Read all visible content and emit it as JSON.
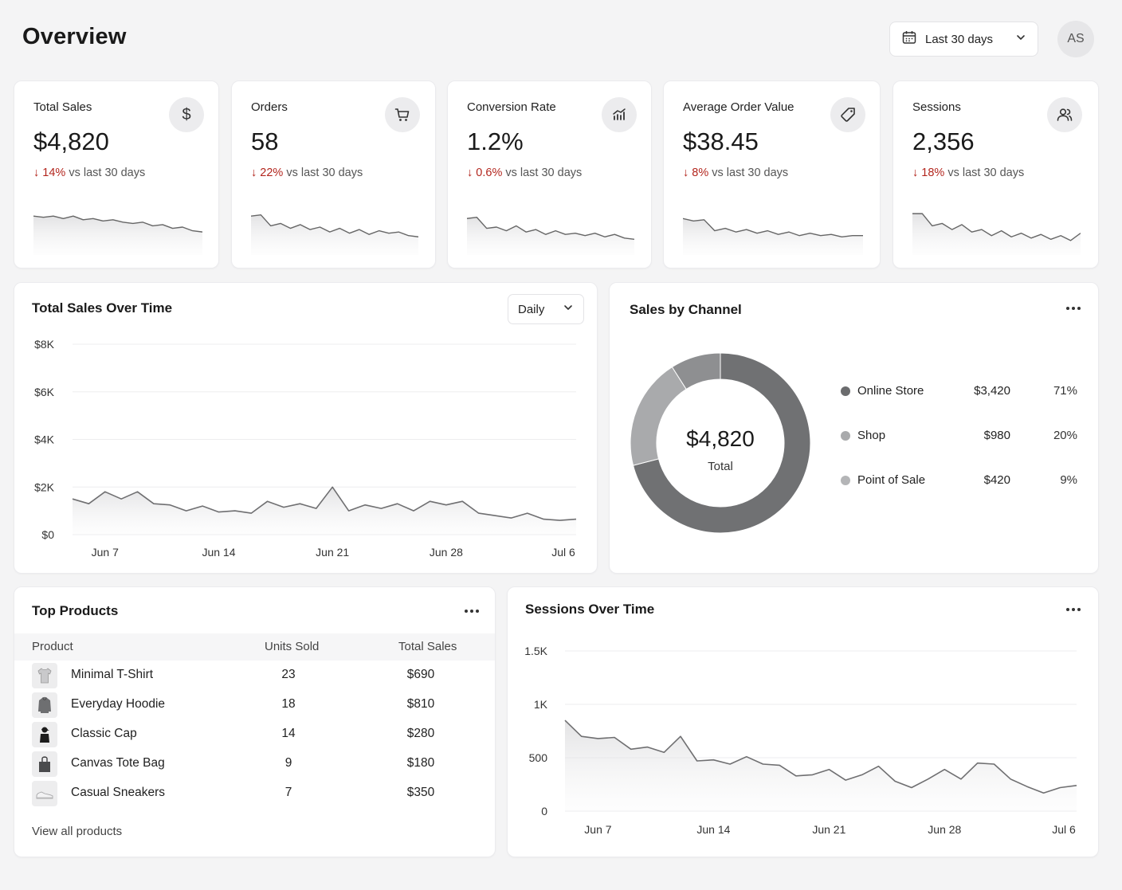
{
  "header": {
    "title": "Overview",
    "date_range": "Last 30 days",
    "avatar_initials": "AS"
  },
  "kpis": [
    {
      "title": "Total Sales",
      "value": "$4,820",
      "delta": "14%",
      "delta_suffix": " vs last 30 days",
      "icon": "dollar-icon",
      "trend": [
        24,
        23,
        24,
        22,
        24,
        21,
        22,
        20,
        21,
        19,
        18,
        19,
        16,
        17,
        14,
        15,
        12,
        11
      ]
    },
    {
      "title": "Orders",
      "value": "58",
      "delta": "22%",
      "delta_suffix": " vs last 30 days",
      "icon": "cart-icon",
      "trend": [
        24,
        25,
        16,
        18,
        14,
        17,
        13,
        15,
        11,
        14,
        10,
        13,
        9,
        12,
        10,
        11,
        8,
        7
      ]
    },
    {
      "title": "Conversion Rate",
      "value": "1.2%",
      "delta": "0.6%",
      "delta_suffix": " vs last 30 days",
      "icon": "bar-chart-icon",
      "trend": [
        22,
        23,
        14,
        15,
        12,
        16,
        11,
        13,
        9,
        12,
        9,
        10,
        8,
        10,
        7,
        9,
        6,
        5
      ]
    },
    {
      "title": "Average Order Value",
      "value": "$38.45",
      "delta": "8%",
      "delta_suffix": " vs last 30 days",
      "icon": "tag-icon",
      "trend": [
        22,
        20,
        21,
        12,
        14,
        11,
        13,
        10,
        12,
        9,
        11,
        8,
        10,
        8,
        9,
        7,
        8,
        8
      ]
    },
    {
      "title": "Sessions",
      "value": "2,356",
      "delta": "18%",
      "delta_suffix": " vs last 30 days",
      "icon": "users-icon",
      "trend": [
        26,
        26,
        16,
        18,
        13,
        17,
        11,
        13,
        8,
        12,
        7,
        10,
        6,
        9,
        5,
        8,
        4,
        10
      ]
    }
  ],
  "sales_over_time": {
    "title": "Total Sales Over Time",
    "granularity": "Daily",
    "chart_data": {
      "type": "area",
      "x": [
        "Jun 5",
        "Jun 6",
        "Jun 7",
        "Jun 8",
        "Jun 9",
        "Jun 10",
        "Jun 11",
        "Jun 12",
        "Jun 13",
        "Jun 14",
        "Jun 15",
        "Jun 16",
        "Jun 17",
        "Jun 18",
        "Jun 19",
        "Jun 20",
        "Jun 21",
        "Jun 22",
        "Jun 23",
        "Jun 24",
        "Jun 25",
        "Jun 26",
        "Jun 27",
        "Jun 28",
        "Jun 29",
        "Jun 30",
        "Jul 1",
        "Jul 2",
        "Jul 3",
        "Jul 4",
        "Jul 5",
        "Jul 6"
      ],
      "values": [
        1500,
        1300,
        1800,
        1500,
        1800,
        1300,
        1250,
        1000,
        1200,
        950,
        1000,
        900,
        1400,
        1150,
        1300,
        1100,
        2000,
        1000,
        1250,
        1100,
        1300,
        1000,
        1400,
        1250,
        1400,
        900,
        800,
        700,
        900,
        650,
        600,
        650
      ],
      "ylim": [
        0,
        8000
      ],
      "yticks": [
        "$0",
        "$2K",
        "$4K",
        "$6K",
        "$8K"
      ],
      "xtick_labels": [
        {
          "label": "Jun 7",
          "index": 2
        },
        {
          "label": "Jun 14",
          "index": 9
        },
        {
          "label": "Jun 21",
          "index": 16
        },
        {
          "label": "Jun 28",
          "index": 23
        },
        {
          "label": "Jul 6",
          "index": 31
        }
      ],
      "grid": true
    }
  },
  "sales_by_channel": {
    "title": "Sales by Channel",
    "total_value": "$4,820",
    "total_label": "Total",
    "chart_data": {
      "type": "pie",
      "donut": true,
      "slices": [
        {
          "name": "Online Store",
          "amount": "$3,420",
          "value": 71,
          "pct": "71%",
          "color": "#707173"
        },
        {
          "name": "Shop",
          "amount": "$980",
          "value": 20,
          "pct": "20%",
          "color": "#a9aaac"
        },
        {
          "name": "Point of Sale",
          "amount": "$420",
          "value": 9,
          "pct": "9%",
          "color": "#8e8f91"
        }
      ]
    }
  },
  "top_products": {
    "title": "Top Products",
    "columns": [
      "Product",
      "Units Sold",
      "Total Sales"
    ],
    "rows": [
      {
        "name": "Minimal T-Shirt",
        "units": "23",
        "sales": "$690",
        "icon": "tshirt-icon"
      },
      {
        "name": "Everyday Hoodie",
        "units": "18",
        "sales": "$810",
        "icon": "hoodie-icon"
      },
      {
        "name": "Classic Cap",
        "units": "14",
        "sales": "$280",
        "icon": "cap-icon"
      },
      {
        "name": "Canvas Tote Bag",
        "units": "9",
        "sales": "$180",
        "icon": "tote-bag-icon"
      },
      {
        "name": "Casual Sneakers",
        "units": "7",
        "sales": "$350",
        "icon": "sneaker-icon"
      }
    ],
    "view_all": "View all products"
  },
  "sessions_over_time": {
    "title": "Sessions Over Time",
    "chart_data": {
      "type": "area",
      "x": [
        "Jun 5",
        "Jun 6",
        "Jun 7",
        "Jun 8",
        "Jun 9",
        "Jun 10",
        "Jun 11",
        "Jun 12",
        "Jun 13",
        "Jun 14",
        "Jun 15",
        "Jun 16",
        "Jun 17",
        "Jun 18",
        "Jun 19",
        "Jun 20",
        "Jun 21",
        "Jun 22",
        "Jun 23",
        "Jun 24",
        "Jun 25",
        "Jun 26",
        "Jun 27",
        "Jun 28",
        "Jun 29",
        "Jun 30",
        "Jul 1",
        "Jul 2",
        "Jul 3",
        "Jul 4",
        "Jul 5",
        "Jul 6"
      ],
      "values": [
        850,
        700,
        680,
        690,
        580,
        600,
        550,
        700,
        470,
        480,
        440,
        510,
        440,
        430,
        330,
        340,
        390,
        290,
        340,
        420,
        280,
        220,
        300,
        390,
        300,
        450,
        440,
        300,
        230,
        170,
        220,
        240
      ],
      "ylim": [
        0,
        1500
      ],
      "yticks": [
        "0",
        "500",
        "1K",
        "1.5K"
      ],
      "xtick_labels": [
        {
          "label": "Jun 7",
          "index": 2
        },
        {
          "label": "Jun 14",
          "index": 9
        },
        {
          "label": "Jun 21",
          "index": 16
        },
        {
          "label": "Jun 28",
          "index": 23
        },
        {
          "label": "Jul 6",
          "index": 31
        }
      ],
      "grid": true
    }
  }
}
